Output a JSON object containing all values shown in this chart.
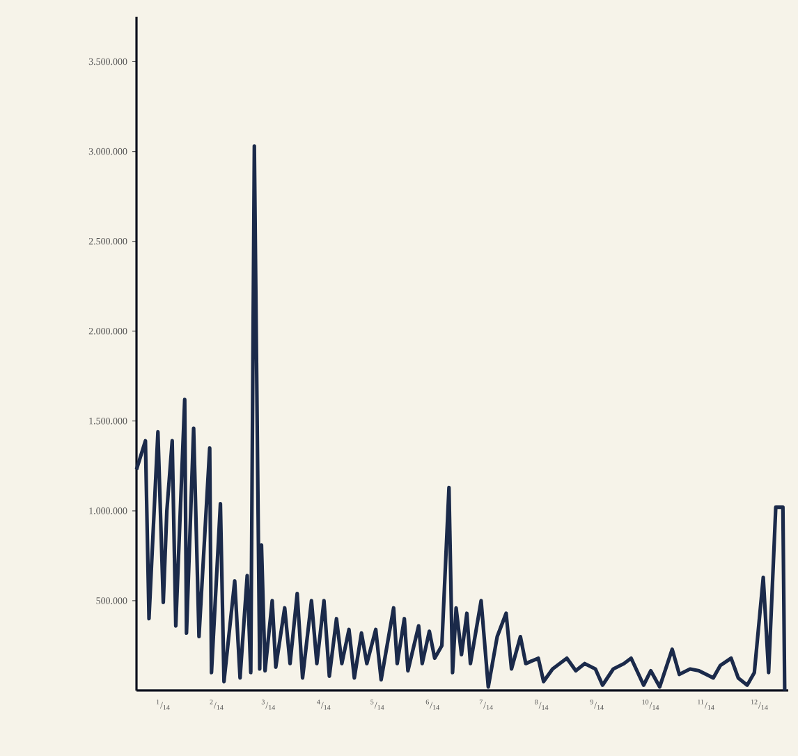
{
  "chart_data": {
    "type": "line",
    "x": [
      "2014-01-01",
      "2014-01-06",
      "2014-01-08",
      "2014-01-13",
      "2014-01-16",
      "2014-01-18",
      "2014-01-21",
      "2014-01-23",
      "2014-01-28",
      "2014-01-29",
      "2014-02-02",
      "2014-02-05",
      "2014-02-11",
      "2014-02-12",
      "2014-02-17",
      "2014-02-19",
      "2014-02-25",
      "2014-02-28",
      "2014-03-04",
      "2014-03-06",
      "2014-03-08",
      "2014-03-11",
      "2014-03-12",
      "2014-03-14",
      "2014-03-18",
      "2014-03-20",
      "2014-03-25",
      "2014-03-28",
      "2014-04-01",
      "2014-04-04",
      "2014-04-09",
      "2014-04-12",
      "2014-04-16",
      "2014-04-19",
      "2014-04-23",
      "2014-04-26",
      "2014-04-30",
      "2014-05-03",
      "2014-05-07",
      "2014-05-10",
      "2014-05-15",
      "2014-05-18",
      "2014-05-25",
      "2014-05-27",
      "2014-05-31",
      "2014-06-02",
      "2014-06-08",
      "2014-06-10",
      "2014-06-14",
      "2014-06-17",
      "2014-06-21",
      "2014-06-25",
      "2014-06-27",
      "2014-06-29",
      "2014-07-02",
      "2014-07-05",
      "2014-07-07",
      "2014-07-13",
      "2014-07-17",
      "2014-07-22",
      "2014-07-27",
      "2014-07-30",
      "2014-08-04",
      "2014-08-07",
      "2014-08-14",
      "2014-08-17",
      "2014-08-22",
      "2014-08-30",
      "2014-09-04",
      "2014-09-09",
      "2014-09-15",
      "2014-09-19",
      "2014-09-25",
      "2014-10-01",
      "2014-10-05",
      "2014-10-12",
      "2014-10-16",
      "2014-10-21",
      "2014-10-28",
      "2014-11-01",
      "2014-11-07",
      "2014-11-12",
      "2014-11-20",
      "2014-11-24",
      "2014-11-30",
      "2014-12-04",
      "2014-12-09",
      "2014-12-13",
      "2014-12-18",
      "2014-12-21",
      "2014-12-25",
      "2014-12-29",
      "2014-12-30"
    ],
    "series": [
      {
        "color": "#1b2a4a",
        "values": [
          1230000,
          1390000,
          400000,
          1440000,
          490000,
          1000000,
          1390000,
          360000,
          1620000,
          320000,
          1460000,
          300000,
          1350000,
          100000,
          1040000,
          50000,
          610000,
          70000,
          640000,
          100000,
          3030000,
          120000,
          810000,
          110000,
          500000,
          130000,
          460000,
          150000,
          540000,
          70000,
          500000,
          150000,
          500000,
          80000,
          400000,
          150000,
          340000,
          70000,
          320000,
          150000,
          340000,
          60000,
          460000,
          150000,
          400000,
          110000,
          360000,
          150000,
          330000,
          180000,
          250000,
          1130000,
          100000,
          460000,
          200000,
          430000,
          150000,
          500000,
          20000,
          300000,
          430000,
          120000,
          300000,
          150000,
          180000,
          50000,
          120000,
          180000,
          110000,
          150000,
          120000,
          30000,
          120000,
          150000,
          180000,
          30000,
          110000,
          20000,
          230000,
          90000,
          120000,
          110000,
          70000,
          140000,
          180000,
          70000,
          30000,
          100000,
          630000,
          100000,
          1020000,
          1020000,
          0
        ]
      }
    ],
    "xlim": [
      "2014-01-01",
      "2015-01-01"
    ],
    "xticks": [
      {
        "value": "2014-01-16",
        "label": "$^{1}$/$_{14}$"
      },
      {
        "value": "2014-02-15",
        "label": "$^{2}$/$_{14}$"
      },
      {
        "value": "2014-03-16",
        "label": "$^{3}$/$_{14}$"
      },
      {
        "value": "2014-04-16",
        "label": "$^{4}$/$_{14}$"
      },
      {
        "value": "2014-05-16",
        "label": "$^{5}$/$_{14}$"
      },
      {
        "value": "2014-06-16",
        "label": "$^{6}$/$_{14}$"
      },
      {
        "value": "2014-07-16",
        "label": "$^{7}$/$_{14}$"
      },
      {
        "value": "2014-08-16",
        "label": "$^{8}$/$_{14}$"
      },
      {
        "value": "2014-09-16",
        "label": "$^{9}$/$_{14}$"
      },
      {
        "value": "2014-10-16",
        "label": "$^{10}$/$_{14}$"
      },
      {
        "value": "2014-11-16",
        "label": "$^{11}$/$_{14}$"
      },
      {
        "value": "2014-12-16",
        "label": "$^{12}$/$_{14}$"
      }
    ],
    "ylim": [
      0,
      3750000
    ],
    "yticks": [
      {
        "value": 500000,
        "label": "500.000"
      },
      {
        "value": 1000000,
        "label": "1.000.000"
      },
      {
        "value": 1500000,
        "label": "1.500.000"
      },
      {
        "value": 2000000,
        "label": "2.000.000"
      },
      {
        "value": 2500000,
        "label": "2.500.000"
      },
      {
        "value": 3000000,
        "label": "3.000.000"
      },
      {
        "value": 3500000,
        "label": "3.500.000"
      }
    ],
    "grid": false,
    "marker": "none",
    "line_style": "solid"
  }
}
